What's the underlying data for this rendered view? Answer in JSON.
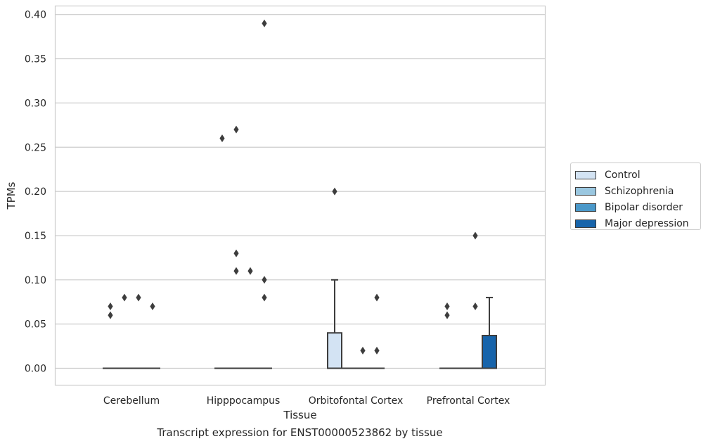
{
  "chart_data": {
    "type": "box",
    "xlabel": "Tissue",
    "ylabel": "TPMs",
    "ylim": [
      -0.02,
      0.41
    ],
    "yticks": [
      "0.00",
      "0.05",
      "0.10",
      "0.15",
      "0.20",
      "0.25",
      "0.30",
      "0.35",
      "0.40"
    ],
    "ytick_values": [
      0,
      0.05,
      0.1,
      0.15,
      0.2,
      0.25,
      0.3,
      0.35,
      0.4
    ],
    "categories": [
      "Cerebellum",
      "Hipppocampus",
      "Orbitofontal Cortex",
      "Prefrontal Cortex"
    ],
    "grid": "horizontal",
    "legend_position": "right-outside",
    "series": [
      {
        "name": "Control",
        "color": "#d3e3f3",
        "boxes": [
          {
            "q1": 0,
            "median": 0,
            "q3": 0,
            "whislo": 0,
            "whishi": 0,
            "fliers": [
              0.07,
              0.06
            ]
          },
          {
            "q1": 0,
            "median": 0,
            "q3": 0,
            "whislo": 0,
            "whishi": 0,
            "fliers": [
              0.26
            ]
          },
          {
            "q1": 0,
            "median": 0,
            "q3": 0.04,
            "whislo": 0,
            "whishi": 0.1,
            "fliers": [
              0.2
            ]
          },
          {
            "q1": 0,
            "median": 0,
            "q3": 0,
            "whislo": 0,
            "whishi": 0,
            "fliers": [
              0.07,
              0.06
            ]
          }
        ]
      },
      {
        "name": "Schizophrenia",
        "color": "#9ac7e0",
        "boxes": [
          {
            "q1": 0,
            "median": 0,
            "q3": 0,
            "whislo": 0,
            "whishi": 0,
            "fliers": [
              0.08
            ]
          },
          {
            "q1": 0,
            "median": 0,
            "q3": 0,
            "whislo": 0,
            "whishi": 0,
            "fliers": [
              0.27,
              0.13,
              0.11
            ]
          },
          {
            "q1": 0,
            "median": 0,
            "q3": 0,
            "whislo": 0,
            "whishi": 0,
            "fliers": []
          },
          {
            "q1": 0,
            "median": 0,
            "q3": 0,
            "whislo": 0,
            "whishi": 0,
            "fliers": []
          }
        ]
      },
      {
        "name": "Bipolar disorder",
        "color": "#4a98c9",
        "boxes": [
          {
            "q1": 0,
            "median": 0,
            "q3": 0,
            "whislo": 0,
            "whishi": 0,
            "fliers": [
              0.08
            ]
          },
          {
            "q1": 0,
            "median": 0,
            "q3": 0,
            "whislo": 0,
            "whishi": 0,
            "fliers": [
              0.11
            ]
          },
          {
            "q1": 0,
            "median": 0,
            "q3": 0,
            "whislo": 0,
            "whishi": 0,
            "fliers": [
              0.02
            ]
          },
          {
            "q1": 0,
            "median": 0,
            "q3": 0,
            "whislo": 0,
            "whishi": 0,
            "fliers": [
              0.15,
              0.07
            ]
          }
        ]
      },
      {
        "name": "Major depression",
        "color": "#1764ab",
        "boxes": [
          {
            "q1": 0,
            "median": 0,
            "q3": 0,
            "whislo": 0,
            "whishi": 0,
            "fliers": [
              0.07
            ]
          },
          {
            "q1": 0,
            "median": 0,
            "q3": 0,
            "whislo": 0,
            "whishi": 0,
            "fliers": [
              0.39,
              0.1,
              0.08
            ]
          },
          {
            "q1": 0,
            "median": 0,
            "q3": 0,
            "whislo": 0,
            "whishi": 0,
            "fliers": [
              0.08,
              0.02
            ]
          },
          {
            "q1": 0,
            "median": 0,
            "q3": 0.037,
            "whislo": 0,
            "whishi": 0.08,
            "fliers": []
          }
        ]
      }
    ],
    "caption": "Transcript expression for ENST00000523862 by tissue"
  }
}
